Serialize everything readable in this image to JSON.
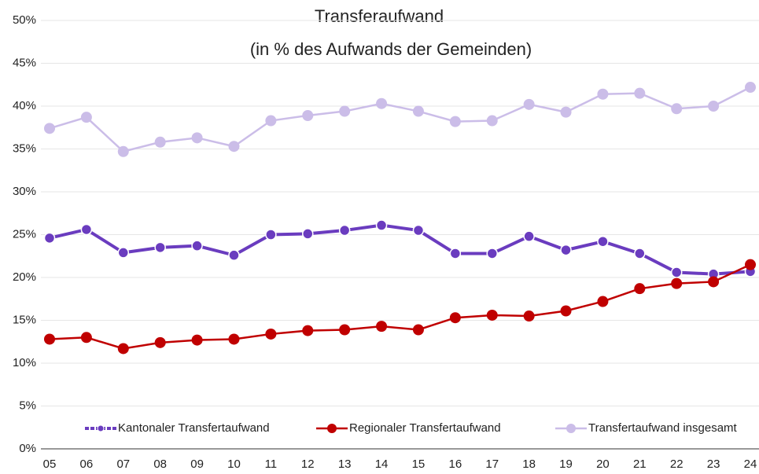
{
  "chart_data": {
    "type": "line",
    "title": "Transferaufwand",
    "subtitle": "(in % des Aufwands der Gemeinden)",
    "categories": [
      "05",
      "06",
      "07",
      "08",
      "09",
      "10",
      "11",
      "12",
      "13",
      "14",
      "15",
      "16",
      "17",
      "18",
      "19",
      "20",
      "21",
      "22",
      "23",
      "24"
    ],
    "series": [
      {
        "name": "Kantonaler Transfertaufwand",
        "color": "#6a3cbf",
        "values": [
          24.6,
          25.6,
          22.9,
          23.5,
          23.7,
          22.6,
          25.0,
          25.1,
          25.5,
          26.1,
          25.5,
          22.8,
          22.8,
          24.8,
          23.2,
          24.2,
          22.8,
          20.6,
          20.4,
          20.7
        ]
      },
      {
        "name": "Regionaler Transfertaufwand",
        "color": "#c00000",
        "values": [
          12.8,
          13.0,
          11.7,
          12.4,
          12.7,
          12.8,
          13.4,
          13.8,
          13.9,
          14.3,
          13.9,
          15.3,
          15.6,
          15.5,
          16.1,
          17.2,
          18.7,
          19.3,
          19.5,
          21.5
        ]
      },
      {
        "name": "Transfertaufwand insgesamt",
        "color": "#cbbde8",
        "values": [
          37.4,
          38.7,
          34.7,
          35.8,
          36.3,
          35.3,
          38.3,
          38.9,
          39.4,
          40.3,
          39.4,
          38.2,
          38.3,
          40.2,
          39.3,
          41.4,
          41.5,
          39.7,
          40.0,
          42.2
        ]
      }
    ],
    "ylim": [
      0,
      50
    ],
    "yticks": [
      {
        "value": 0,
        "label": "0%"
      },
      {
        "value": 5,
        "label": "5%"
      },
      {
        "value": 10,
        "label": "10%"
      },
      {
        "value": 15,
        "label": "15%"
      },
      {
        "value": 20,
        "label": "20%"
      },
      {
        "value": 25,
        "label": "25%"
      },
      {
        "value": 30,
        "label": "30%"
      },
      {
        "value": 35,
        "label": "35%"
      },
      {
        "value": 40,
        "label": "40%"
      },
      {
        "value": 45,
        "label": "45%"
      },
      {
        "value": 50,
        "label": "50%"
      }
    ],
    "grid": true,
    "legend": "bottom"
  }
}
